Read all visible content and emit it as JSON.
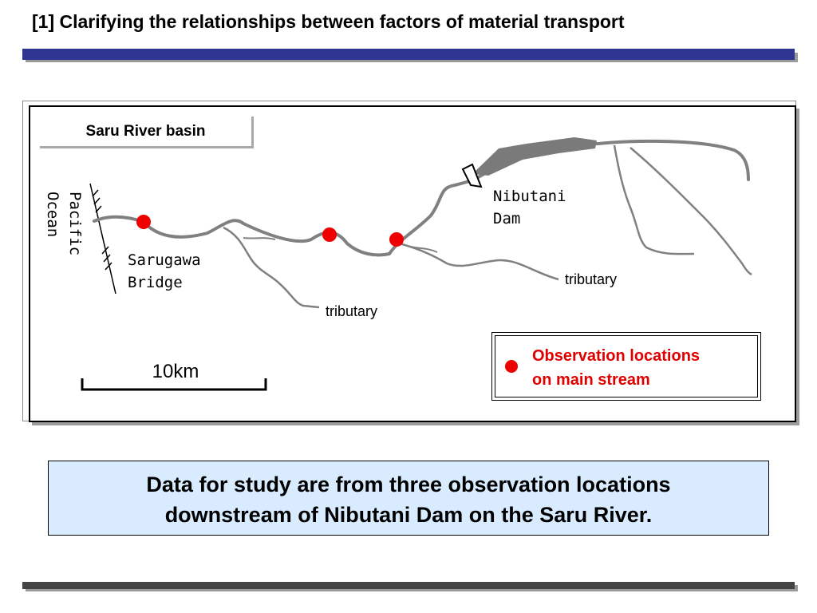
{
  "header": {
    "title": "[1] Clarifying the relationships between factors of material transport"
  },
  "map": {
    "basin_label": "Saru River basin",
    "ocean_label": "Pacific Ocean",
    "bridge_label_line1": "Sarugawa",
    "bridge_label_line2": "Bridge",
    "dam_label_line1": "Nibutani",
    "dam_label_line2": "Dam",
    "tributary_label_1": "tributary",
    "tributary_label_2": "tributary",
    "scale_label": "10km",
    "river_color": "#808080",
    "observation_color": "#ee0000",
    "icons": [
      "dam-icon",
      "observation-point-icon",
      "coastline-hatch-icon",
      "scale-bar-icon"
    ]
  },
  "legend": {
    "line1": "Observation locations",
    "line2": "on main stream"
  },
  "caption": {
    "line1": "Data for study are from three observation locations",
    "line2": "downstream of Nibutani Dam on the Saru River."
  },
  "colors": {
    "title_bar": "#2e3592",
    "caption_bg": "#d8ebff",
    "legend_text": "#e00000"
  }
}
